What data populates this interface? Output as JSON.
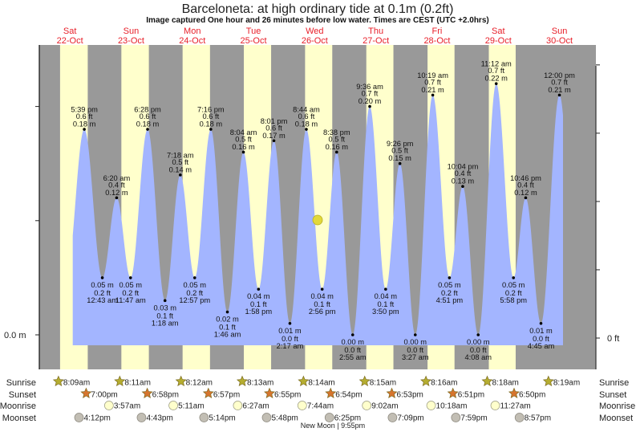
{
  "title": "Barceloneta: at high  ordinary tide at 0.1m (0.2ft)",
  "subtitle": "Image captured One hour and 26 minutes before low water. Times are CEST (UTC +2.0hrs)",
  "colors": {
    "night": "#999999",
    "day": "#ffffcc",
    "water": "#a3b5ff",
    "day_label": "#e8202a",
    "sunrise_star": "#b5ad30",
    "sunset_star": "#d6752e",
    "moonrise": "#ffffcc",
    "moonset": "#c2beb4",
    "moon_phase": "#e2d83a"
  },
  "days": [
    {
      "weekday": "Sat",
      "date": "22-Oct"
    },
    {
      "weekday": "Sun",
      "date": "23-Oct"
    },
    {
      "weekday": "Mon",
      "date": "24-Oct"
    },
    {
      "weekday": "Tue",
      "date": "25-Oct"
    },
    {
      "weekday": "Wed",
      "date": "26-Oct"
    },
    {
      "weekday": "Thu",
      "date": "27-Oct"
    },
    {
      "weekday": "Fri",
      "date": "28-Oct"
    },
    {
      "weekday": "Sat",
      "date": "29-Oct"
    },
    {
      "weekday": "Sun",
      "date": "30-Oct"
    }
  ],
  "chart_data": {
    "type": "area",
    "xlabel": "",
    "ylabel": "",
    "y_left_unit": "m",
    "y_left_label": "0.0 m",
    "y_right_label": "0 ft",
    "y_left_ticks_m": [
      0.0,
      0.1,
      0.2
    ],
    "y_right_ticks_ft": [
      0.0,
      0.2,
      0.4,
      0.6,
      0.8
    ],
    "ylim_m": [
      0.0,
      0.25
    ],
    "extremes": [
      {
        "day": 0,
        "time": "5:39 pm",
        "type": "high",
        "m": "0.18 m",
        "ft": "0.6 ft",
        "value": 0.18
      },
      {
        "day": 1,
        "time": "12:43 am",
        "type": "low",
        "m": "0.05 m",
        "ft": "0.2 ft",
        "value": 0.05
      },
      {
        "day": 1,
        "time": "6:20 am",
        "type": "high",
        "m": "0.12 m",
        "ft": "0.4 ft",
        "value": 0.12
      },
      {
        "day": 1,
        "time": "11:47 am",
        "type": "low",
        "m": "0.05 m",
        "ft": "0.2 ft",
        "value": 0.05
      },
      {
        "day": 1,
        "time": "6:28 pm",
        "type": "high",
        "m": "0.18 m",
        "ft": "0.6 ft",
        "value": 0.18
      },
      {
        "day": 2,
        "time": "1:18 am",
        "type": "low",
        "m": "0.03 m",
        "ft": "0.1 ft",
        "value": 0.03
      },
      {
        "day": 2,
        "time": "7:18 am",
        "type": "high",
        "m": "0.14 m",
        "ft": "0.5 ft",
        "value": 0.14
      },
      {
        "day": 2,
        "time": "12:57 pm",
        "type": "low",
        "m": "0.05 m",
        "ft": "0.2 ft",
        "value": 0.05
      },
      {
        "day": 2,
        "time": "7:16 pm",
        "type": "high",
        "m": "0.18 m",
        "ft": "0.6 ft",
        "value": 0.18
      },
      {
        "day": 3,
        "time": "1:46 am",
        "type": "low",
        "m": "0.02 m",
        "ft": "0.1 ft",
        "value": 0.02
      },
      {
        "day": 3,
        "time": "8:04 am",
        "type": "high",
        "m": "0.16 m",
        "ft": "0.5 ft",
        "value": 0.16
      },
      {
        "day": 3,
        "time": "1:58 pm",
        "type": "low",
        "m": "0.04 m",
        "ft": "0.1 ft",
        "value": 0.04
      },
      {
        "day": 3,
        "time": "8:01 pm",
        "type": "high",
        "m": "0.17 m",
        "ft": "0.6 ft",
        "value": 0.17
      },
      {
        "day": 4,
        "time": "2:17 am",
        "type": "low",
        "m": "0.01 m",
        "ft": "0.0 ft",
        "value": 0.01
      },
      {
        "day": 4,
        "time": "8:44 am",
        "type": "high",
        "m": "0.18 m",
        "ft": "0.6 ft",
        "value": 0.18
      },
      {
        "day": 4,
        "time": "2:56 pm",
        "type": "low",
        "m": "0.04 m",
        "ft": "0.1 ft",
        "value": 0.04
      },
      {
        "day": 4,
        "time": "8:38 pm",
        "type": "high",
        "m": "0.16 m",
        "ft": "0.5 ft",
        "value": 0.16
      },
      {
        "day": 5,
        "time": "2:55 am",
        "type": "low",
        "m": "0.00 m",
        "ft": "0.0 ft",
        "value": 0.0
      },
      {
        "day": 5,
        "time": "9:36 am",
        "type": "high",
        "m": "0.20 m",
        "ft": "0.7 ft",
        "value": 0.2
      },
      {
        "day": 5,
        "time": "3:50 pm",
        "type": "low",
        "m": "0.04 m",
        "ft": "0.1 ft",
        "value": 0.04
      },
      {
        "day": 5,
        "time": "9:26 pm",
        "type": "high",
        "m": "0.15 m",
        "ft": "0.5 ft",
        "value": 0.15
      },
      {
        "day": 6,
        "time": "3:27 am",
        "type": "low",
        "m": "0.00 m",
        "ft": "0.0 ft",
        "value": 0.0
      },
      {
        "day": 6,
        "time": "10:19 am",
        "type": "high",
        "m": "0.21 m",
        "ft": "0.7 ft",
        "value": 0.21
      },
      {
        "day": 6,
        "time": "4:51 pm",
        "type": "low",
        "m": "0.05 m",
        "ft": "0.2 ft",
        "value": 0.05
      },
      {
        "day": 6,
        "time": "10:04 pm",
        "type": "high",
        "m": "0.13 m",
        "ft": "0.4 ft",
        "value": 0.13
      },
      {
        "day": 7,
        "time": "4:08 am",
        "type": "low",
        "m": "0.00 m",
        "ft": "0.0 ft",
        "value": 0.0
      },
      {
        "day": 7,
        "time": "11:12 am",
        "type": "high",
        "m": "0.22 m",
        "ft": "0.7 ft",
        "value": 0.22
      },
      {
        "day": 7,
        "time": "5:58 pm",
        "type": "low",
        "m": "0.05 m",
        "ft": "0.2 ft",
        "value": 0.05
      },
      {
        "day": 7,
        "time": "10:46 pm",
        "type": "high",
        "m": "0.12 m",
        "ft": "0.4 ft",
        "value": 0.12
      },
      {
        "day": 8,
        "time": "4:45 am",
        "type": "low",
        "m": "0.01 m",
        "ft": "0.0 ft",
        "value": 0.01
      },
      {
        "day": 8,
        "time": "12:00 pm",
        "type": "high",
        "m": "0.21 m",
        "ft": "0.7 ft",
        "value": 0.21
      }
    ]
  },
  "almanac": {
    "labels": {
      "sunrise": "Sunrise",
      "sunset": "Sunset",
      "moonrise": "Moonrise",
      "moonset": "Moonset"
    },
    "sunrise": [
      {
        "day": 0,
        "time": "8:09am"
      },
      {
        "day": 1,
        "time": "8:11am"
      },
      {
        "day": 2,
        "time": "8:12am"
      },
      {
        "day": 3,
        "time": "8:13am"
      },
      {
        "day": 4,
        "time": "8:14am"
      },
      {
        "day": 5,
        "time": "8:15am"
      },
      {
        "day": 6,
        "time": "8:16am"
      },
      {
        "day": 7,
        "time": "8:18am"
      },
      {
        "day": 8,
        "time": "8:19am"
      }
    ],
    "sunset": [
      {
        "day": 0,
        "time": "7:00pm"
      },
      {
        "day": 1,
        "time": "6:58pm"
      },
      {
        "day": 2,
        "time": "6:57pm"
      },
      {
        "day": 3,
        "time": "6:55pm"
      },
      {
        "day": 4,
        "time": "6:54pm"
      },
      {
        "day": 5,
        "time": "6:53pm"
      },
      {
        "day": 6,
        "time": "6:51pm"
      },
      {
        "day": 7,
        "time": "6:50pm"
      }
    ],
    "moonrise": [
      {
        "day": 1,
        "time": "3:57am"
      },
      {
        "day": 2,
        "time": "5:11am"
      },
      {
        "day": 3,
        "time": "6:27am"
      },
      {
        "day": 4,
        "time": "7:44am"
      },
      {
        "day": 5,
        "time": "9:02am"
      },
      {
        "day": 6,
        "time": "10:18am"
      },
      {
        "day": 7,
        "time": "11:27am"
      }
    ],
    "moonset": [
      {
        "day": 0,
        "time": "4:12pm"
      },
      {
        "day": 1,
        "time": "4:43pm"
      },
      {
        "day": 2,
        "time": "5:14pm"
      },
      {
        "day": 3,
        "time": "5:48pm"
      },
      {
        "day": 4,
        "time": "6:25pm"
      },
      {
        "day": 5,
        "time": "7:09pm"
      },
      {
        "day": 6,
        "time": "7:59pm"
      },
      {
        "day": 7,
        "time": "8:57pm"
      }
    ],
    "moon_phase": "New Moon | 9:55pm"
  }
}
